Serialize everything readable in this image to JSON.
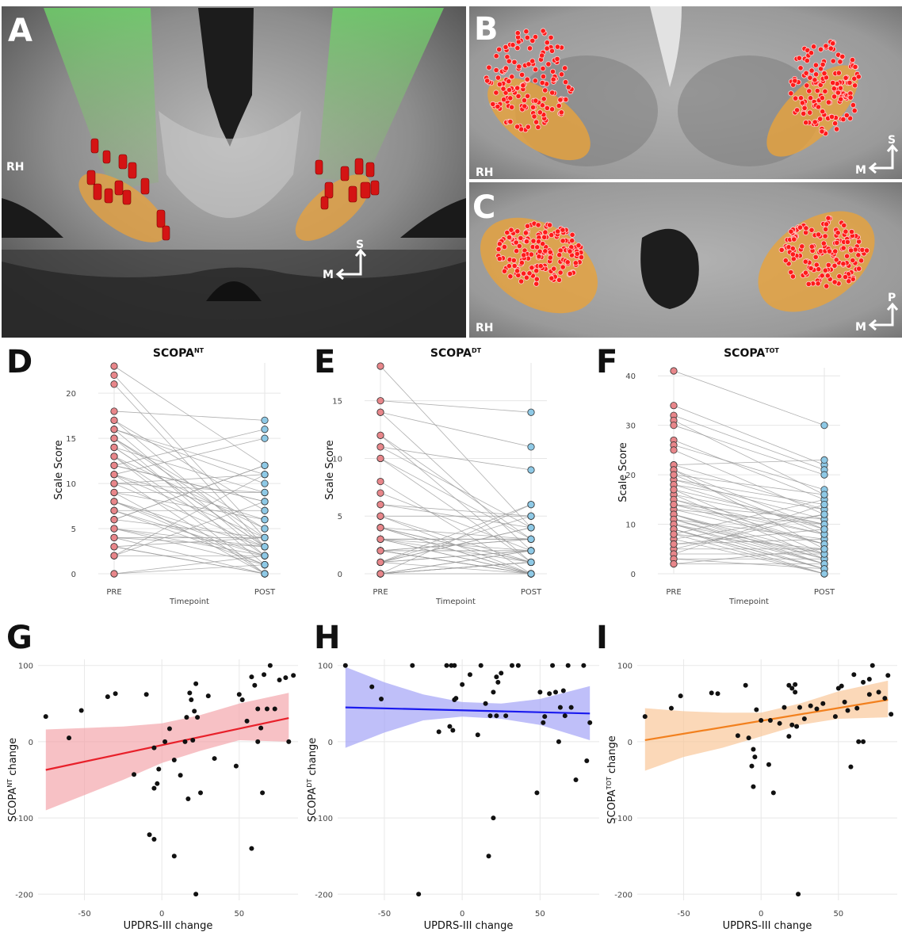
{
  "panels": {
    "A": {
      "letter": "A",
      "hemisphere_label": "RH",
      "orient_vertical": "S",
      "orient_horizontal": "M"
    },
    "B": {
      "letter": "B",
      "hemisphere_label": "RH",
      "orient_vertical": "S",
      "orient_horizontal": "M"
    },
    "C": {
      "letter": "C",
      "hemisphere_label": "RH",
      "orient_vertical": "P",
      "orient_horizontal": "M"
    },
    "D": {
      "letter": "D"
    },
    "E": {
      "letter": "E"
    },
    "F": {
      "letter": "F"
    },
    "G": {
      "letter": "G"
    },
    "H": {
      "letter": "H"
    },
    "I": {
      "letter": "I"
    }
  },
  "colors": {
    "pre_point": "#e8868a",
    "post_point": "#8ec9e6",
    "pair_line": "#9a9a9a",
    "contact_point": "#ff1a1a",
    "nucleus_fill": "#e9a23b",
    "fit_G": "#e8202a",
    "band_G": "#f4a6ad",
    "fit_H": "#1a1aee",
    "band_H": "#a4a4f6",
    "fit_I": "#f2801e",
    "band_I": "#f9c79a"
  },
  "chart_data": [
    {
      "id": "D",
      "type": "line",
      "title": "SCOPA",
      "title_sub": "NT",
      "xlabel": "Timepoint",
      "ylabel": "Scale Score",
      "categories": [
        "PRE",
        "POST"
      ],
      "ylim": [
        0,
        23
      ],
      "yticks": [
        0,
        5,
        10,
        15,
        20
      ],
      "pre_values": [
        23,
        22,
        21,
        18,
        17,
        16,
        15,
        14,
        13,
        12,
        11,
        10,
        9,
        8,
        7,
        6,
        5,
        4,
        3,
        2,
        0,
        17,
        16,
        15,
        14,
        13,
        12,
        11,
        10,
        9,
        8,
        7,
        6,
        5,
        4,
        3,
        2,
        0,
        15,
        14,
        12,
        11,
        10,
        9,
        8,
        7,
        6,
        5,
        4,
        3,
        2,
        16,
        11,
        13
      ],
      "post_values": [
        12,
        4,
        3,
        17,
        3,
        2,
        1,
        3,
        0,
        16,
        15,
        11,
        9,
        3,
        2,
        12,
        1,
        0,
        4,
        8,
        2,
        7,
        11,
        4,
        3,
        5,
        8,
        0,
        9,
        6,
        2,
        1,
        12,
        3,
        4,
        0,
        2,
        1,
        5,
        9,
        8,
        6,
        3,
        0,
        1,
        7,
        4,
        2,
        3,
        0,
        11,
        10,
        4,
        2
      ],
      "grid": true,
      "legend": "none"
    },
    {
      "id": "E",
      "type": "line",
      "title": "SCOPA",
      "title_sub": "DT",
      "xlabel": "Timepoint",
      "ylabel": "Scale Score",
      "categories": [
        "PRE",
        "POST"
      ],
      "ylim": [
        0,
        18
      ],
      "yticks": [
        0,
        5,
        10,
        15
      ],
      "pre_values": [
        18,
        15,
        14,
        12,
        11,
        10,
        8,
        7,
        6,
        5,
        4,
        3,
        2,
        1,
        0,
        14,
        12,
        11,
        10,
        6,
        5,
        4,
        3,
        2,
        1,
        0,
        5,
        4,
        3,
        2,
        1,
        0,
        4,
        3,
        2,
        1,
        0,
        3,
        2,
        1,
        0,
        2,
        1,
        0,
        4,
        3,
        2,
        1,
        0,
        0
      ],
      "post_values": [
        4,
        14,
        11,
        1,
        9,
        3,
        0,
        2,
        4,
        5,
        1,
        0,
        3,
        2,
        6,
        2,
        3,
        4,
        1,
        5,
        0,
        1,
        2,
        3,
        0,
        2,
        1,
        0,
        3,
        2,
        4,
        1,
        0,
        0,
        2,
        5,
        1,
        3,
        0,
        2,
        1,
        0,
        6,
        2,
        3,
        1,
        0,
        4,
        0,
        1
      ],
      "grid": true,
      "legend": "none"
    },
    {
      "id": "F",
      "type": "line",
      "title": "SCOPA",
      "title_sub": "TOT",
      "xlabel": "Timepoint",
      "ylabel": "Scale Score",
      "categories": [
        "PRE",
        "POST"
      ],
      "ylim": [
        0,
        41
      ],
      "yticks": [
        0,
        10,
        20,
        30,
        40
      ],
      "pre_values": [
        41,
        34,
        32,
        31,
        30,
        27,
        26,
        25,
        22,
        21,
        20,
        19,
        18,
        17,
        16,
        15,
        14,
        13,
        12,
        11,
        10,
        9,
        8,
        7,
        5,
        4,
        3,
        2,
        22,
        21,
        19,
        18,
        16,
        14,
        13,
        12,
        11,
        10,
        9,
        8,
        7,
        6,
        5,
        4,
        3,
        20,
        17,
        15,
        14,
        12,
        11,
        10,
        9,
        8,
        6,
        2
      ],
      "post_values": [
        30,
        22,
        21,
        16,
        20,
        15,
        17,
        12,
        13,
        5,
        8,
        14,
        9,
        4,
        3,
        6,
        11,
        10,
        2,
        7,
        1,
        0,
        15,
        12,
        5,
        4,
        3,
        2,
        23,
        9,
        11,
        13,
        10,
        8,
        6,
        4,
        3,
        2,
        1,
        5,
        0,
        7,
        12,
        14,
        1,
        16,
        10,
        8,
        6,
        3,
        2,
        4,
        1,
        0,
        9,
        5
      ],
      "grid": true,
      "legend": "none"
    },
    {
      "id": "G",
      "type": "scatter",
      "ylabel": "SCOPA",
      "ylabel_sub": "NT",
      "ylabel_suffix": " change",
      "xlabel": "UPDRS-III change",
      "xlim": [
        -80,
        88
      ],
      "ylim": [
        -208,
        108
      ],
      "xticks": [
        -50,
        0,
        50
      ],
      "yticks": [
        -200,
        -100,
        0,
        100
      ],
      "fit": {
        "x": [
          -75,
          82
        ],
        "y": [
          -37,
          31
        ]
      },
      "band_upper": [
        16,
        18,
        20,
        24,
        35,
        50,
        64
      ],
      "band_lower": [
        -90,
        -70,
        -50,
        -28,
        -12,
        2,
        0
      ],
      "band_x": [
        -75,
        -50,
        -25,
        0,
        25,
        50,
        82
      ],
      "points": [
        {
          "x": -75,
          "y": 33
        },
        {
          "x": -60,
          "y": 5
        },
        {
          "x": -52,
          "y": 41
        },
        {
          "x": -35,
          "y": 59
        },
        {
          "x": -30,
          "y": 63
        },
        {
          "x": -18,
          "y": -43
        },
        {
          "x": -10,
          "y": 62
        },
        {
          "x": -5,
          "y": -8
        },
        {
          "x": -8,
          "y": -122
        },
        {
          "x": -5,
          "y": -128
        },
        {
          "x": -5,
          "y": -61
        },
        {
          "x": -3,
          "y": -55
        },
        {
          "x": -2,
          "y": -36
        },
        {
          "x": 2,
          "y": 0
        },
        {
          "x": 5,
          "y": 17
        },
        {
          "x": 8,
          "y": -24
        },
        {
          "x": 8,
          "y": -150
        },
        {
          "x": 12,
          "y": -44
        },
        {
          "x": 15,
          "y": 0
        },
        {
          "x": 16,
          "y": 32
        },
        {
          "x": 17,
          "y": -75
        },
        {
          "x": 18,
          "y": 64
        },
        {
          "x": 19,
          "y": 55
        },
        {
          "x": 20,
          "y": 2
        },
        {
          "x": 21,
          "y": 40
        },
        {
          "x": 22,
          "y": 76
        },
        {
          "x": 22,
          "y": -200
        },
        {
          "x": 23,
          "y": 32
        },
        {
          "x": 25,
          "y": -67
        },
        {
          "x": 30,
          "y": 60
        },
        {
          "x": 34,
          "y": -22
        },
        {
          "x": 48,
          "y": -32
        },
        {
          "x": 50,
          "y": 62
        },
        {
          "x": 52,
          "y": 55
        },
        {
          "x": 55,
          "y": 27
        },
        {
          "x": 58,
          "y": -140
        },
        {
          "x": 58,
          "y": 85
        },
        {
          "x": 60,
          "y": 74
        },
        {
          "x": 62,
          "y": 43
        },
        {
          "x": 62,
          "y": 0
        },
        {
          "x": 64,
          "y": 18
        },
        {
          "x": 65,
          "y": -67
        },
        {
          "x": 66,
          "y": 88
        },
        {
          "x": 68,
          "y": 43
        },
        {
          "x": 70,
          "y": 100
        },
        {
          "x": 73,
          "y": 43
        },
        {
          "x": 76,
          "y": 81
        },
        {
          "x": 80,
          "y": 84
        },
        {
          "x": 82,
          "y": 0
        },
        {
          "x": 85,
          "y": 87
        }
      ]
    },
    {
      "id": "H",
      "type": "scatter",
      "ylabel": "SCOPA",
      "ylabel_sub": "DT",
      "ylabel_suffix": " change",
      "xlabel": "UPDRS-III change",
      "xlim": [
        -80,
        88
      ],
      "ylim": [
        -208,
        108
      ],
      "xticks": [
        -50,
        0,
        50
      ],
      "yticks": [
        -200,
        -100,
        0,
        100
      ],
      "fit": {
        "x": [
          -75,
          82
        ],
        "y": [
          45,
          37
        ]
      },
      "band_x": [
        -75,
        -50,
        -25,
        0,
        25,
        50,
        82
      ],
      "band_upper": [
        98,
        78,
        62,
        52,
        50,
        56,
        73
      ],
      "band_lower": [
        -8,
        12,
        28,
        33,
        30,
        22,
        2
      ],
      "points": [
        {
          "x": -75,
          "y": 100
        },
        {
          "x": -58,
          "y": 72
        },
        {
          "x": -52,
          "y": 56
        },
        {
          "x": -32,
          "y": 100
        },
        {
          "x": -28,
          "y": -200
        },
        {
          "x": -15,
          "y": 13
        },
        {
          "x": -10,
          "y": 100
        },
        {
          "x": -8,
          "y": 20
        },
        {
          "x": -7,
          "y": 100
        },
        {
          "x": -6,
          "y": 15
        },
        {
          "x": -5,
          "y": 55
        },
        {
          "x": -5,
          "y": 100
        },
        {
          "x": -4,
          "y": 57
        },
        {
          "x": 0,
          "y": 75
        },
        {
          "x": 5,
          "y": 88
        },
        {
          "x": 10,
          "y": 9
        },
        {
          "x": 12,
          "y": 100
        },
        {
          "x": 15,
          "y": 50
        },
        {
          "x": 17,
          "y": -150
        },
        {
          "x": 18,
          "y": 34
        },
        {
          "x": 20,
          "y": 65
        },
        {
          "x": 20,
          "y": -100
        },
        {
          "x": 22,
          "y": 85
        },
        {
          "x": 22,
          "y": 34
        },
        {
          "x": 23,
          "y": 78
        },
        {
          "x": 25,
          "y": 90
        },
        {
          "x": 28,
          "y": 34
        },
        {
          "x": 32,
          "y": 100
        },
        {
          "x": 36,
          "y": 100
        },
        {
          "x": 48,
          "y": -67
        },
        {
          "x": 50,
          "y": 65
        },
        {
          "x": 52,
          "y": 25
        },
        {
          "x": 53,
          "y": 33
        },
        {
          "x": 56,
          "y": 63
        },
        {
          "x": 58,
          "y": 100
        },
        {
          "x": 60,
          "y": 65
        },
        {
          "x": 62,
          "y": 0
        },
        {
          "x": 63,
          "y": 45
        },
        {
          "x": 65,
          "y": 67
        },
        {
          "x": 66,
          "y": 34
        },
        {
          "x": 68,
          "y": 100
        },
        {
          "x": 70,
          "y": 45
        },
        {
          "x": 73,
          "y": -50
        },
        {
          "x": 78,
          "y": 100
        },
        {
          "x": 80,
          "y": -25
        },
        {
          "x": 82,
          "y": 25
        }
      ]
    },
    {
      "id": "I",
      "type": "scatter",
      "ylabel": "SCOPA",
      "ylabel_sub": "TOT",
      "ylabel_suffix": " change",
      "xlabel": "UPDRS-III change",
      "xlim": [
        -80,
        88
      ],
      "ylim": [
        -208,
        108
      ],
      "xticks": [
        -50,
        0,
        50
      ],
      "yticks": [
        -200,
        -100,
        0,
        100
      ],
      "fit": {
        "x": [
          -75,
          82
        ],
        "y": [
          2,
          55
        ]
      },
      "band_x": [
        -75,
        -50,
        -25,
        0,
        25,
        50,
        82
      ],
      "band_upper": [
        44,
        40,
        38,
        38,
        50,
        66,
        80
      ],
      "band_lower": [
        -38,
        -20,
        -8,
        7,
        22,
        30,
        32
      ],
      "points": [
        {
          "x": -75,
          "y": 33
        },
        {
          "x": -58,
          "y": 44
        },
        {
          "x": -52,
          "y": 60
        },
        {
          "x": -32,
          "y": 64
        },
        {
          "x": -28,
          "y": 63
        },
        {
          "x": -15,
          "y": 8
        },
        {
          "x": -10,
          "y": 74
        },
        {
          "x": -8,
          "y": 5
        },
        {
          "x": -6,
          "y": -32
        },
        {
          "x": -5,
          "y": -10
        },
        {
          "x": -5,
          "y": -59
        },
        {
          "x": -4,
          "y": -20
        },
        {
          "x": -3,
          "y": 42
        },
        {
          "x": 0,
          "y": 28
        },
        {
          "x": 5,
          "y": -30
        },
        {
          "x": 6,
          "y": 28
        },
        {
          "x": 8,
          "y": -67
        },
        {
          "x": 12,
          "y": 24
        },
        {
          "x": 15,
          "y": 45
        },
        {
          "x": 18,
          "y": 74
        },
        {
          "x": 18,
          "y": 7
        },
        {
          "x": 20,
          "y": 22
        },
        {
          "x": 20,
          "y": 70
        },
        {
          "x": 22,
          "y": 65
        },
        {
          "x": 22,
          "y": 75
        },
        {
          "x": 23,
          "y": 20
        },
        {
          "x": 24,
          "y": -200
        },
        {
          "x": 25,
          "y": 45
        },
        {
          "x": 28,
          "y": 30
        },
        {
          "x": 32,
          "y": 47
        },
        {
          "x": 36,
          "y": 43
        },
        {
          "x": 40,
          "y": 50
        },
        {
          "x": 48,
          "y": 33
        },
        {
          "x": 50,
          "y": 70
        },
        {
          "x": 52,
          "y": 73
        },
        {
          "x": 54,
          "y": 52
        },
        {
          "x": 56,
          "y": 41
        },
        {
          "x": 58,
          "y": -33
        },
        {
          "x": 60,
          "y": 88
        },
        {
          "x": 62,
          "y": 44
        },
        {
          "x": 63,
          "y": 0
        },
        {
          "x": 66,
          "y": 0
        },
        {
          "x": 66,
          "y": 78
        },
        {
          "x": 70,
          "y": 62
        },
        {
          "x": 70,
          "y": 82
        },
        {
          "x": 72,
          "y": 100
        },
        {
          "x": 76,
          "y": 65
        },
        {
          "x": 80,
          "y": 57
        },
        {
          "x": 82,
          "y": 87
        },
        {
          "x": 84,
          "y": 36
        }
      ]
    }
  ]
}
